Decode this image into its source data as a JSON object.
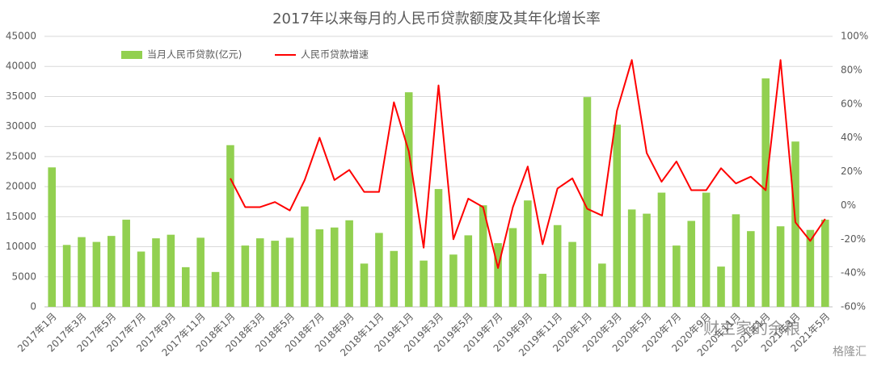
{
  "chart_data": {
    "type": "bar_line",
    "title": "2017年以来每月的人民币贷款额度及其年化增长率",
    "categories": [
      "2017年1月",
      null,
      "2017年3月",
      null,
      "2017年5月",
      null,
      "2017年7月",
      null,
      "2017年9月",
      null,
      "2017年11月",
      null,
      "2018年1月",
      null,
      "2018年3月",
      null,
      "2018年5月",
      null,
      "2018年7月",
      null,
      "2018年9月",
      null,
      "2018年11月",
      null,
      "2019年1月",
      null,
      "2019年3月",
      null,
      "2019年5月",
      null,
      "2019年7月",
      null,
      "2019年9月",
      null,
      "2019年11月",
      null,
      "2020年1月",
      null,
      "2020年3月",
      null,
      "2020年5月",
      null,
      "2020年7月",
      null,
      "2020年9月",
      null,
      "2020年11月",
      null,
      "2021年1月",
      null,
      "2021年3月",
      null,
      "2021年5月"
    ],
    "series": [
      {
        "name": "当月人民币贷款(亿元)",
        "color": "#92d050",
        "type": "bar",
        "values": [
          23200,
          10300,
          11600,
          10800,
          11800,
          14500,
          9200,
          11400,
          12000,
          6600,
          11500,
          5800,
          26900,
          10200,
          11400,
          11000,
          11500,
          16700,
          12900,
          13200,
          14400,
          7200,
          12300,
          9300,
          35700,
          7700,
          19600,
          8700,
          11900,
          16900,
          10600,
          13100,
          17700,
          5500,
          13600,
          10800,
          34900,
          7200,
          30300,
          16200,
          15500,
          19000,
          10200,
          14300,
          19000,
          6700,
          15400,
          12600,
          38000,
          13400,
          27500,
          12800,
          14500
        ]
      },
      {
        "name": "人民币贷款增速",
        "color": "#ff0000",
        "type": "line",
        "axis": "y2",
        "values": [
          null,
          null,
          null,
          null,
          null,
          null,
          null,
          null,
          null,
          null,
          null,
          null,
          16,
          -1,
          -1,
          2,
          -3,
          15,
          40,
          15,
          21,
          8,
          8,
          61,
          32,
          -25,
          71,
          -20,
          4,
          -1,
          -37,
          -1,
          23,
          -23,
          10,
          16,
          -2,
          -6,
          56,
          86,
          31,
          14,
          26,
          9,
          9,
          22,
          13,
          17,
          9,
          86,
          -10,
          -21,
          -8
        ]
      }
    ],
    "ylim": [
      0,
      45000
    ],
    "yticks": [
      0,
      5000,
      10000,
      15000,
      20000,
      25000,
      30000,
      35000,
      40000,
      45000
    ],
    "y2lim": [
      -60,
      100
    ],
    "y2ticks": [
      {
        "value": -60,
        "label": "-60%"
      },
      {
        "value": -40,
        "label": "-40%"
      },
      {
        "value": -20,
        "label": "-20%"
      },
      {
        "value": 0,
        "label": "0%"
      },
      {
        "value": 20,
        "label": "20%"
      },
      {
        "value": 40,
        "label": "40%"
      },
      {
        "value": 60,
        "label": "60%"
      },
      {
        "value": 80,
        "label": "80%"
      },
      {
        "value": 100,
        "label": "100%"
      }
    ],
    "grid": true,
    "legend": "top",
    "watermark": [
      "财主家的余粮",
      "格隆汇"
    ]
  }
}
